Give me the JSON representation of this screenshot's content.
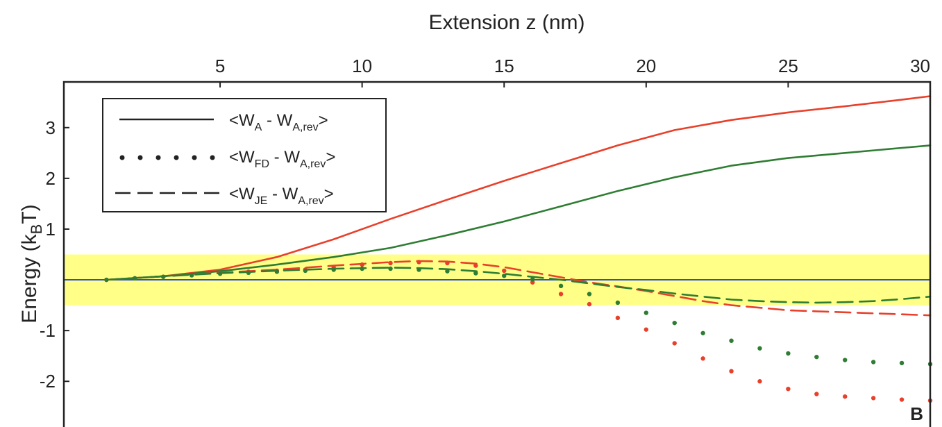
{
  "chart_data": {
    "type": "line",
    "panel_label": "B",
    "xlabel": "Extension z (nm)",
    "ylabel": {
      "main": "Energy (k",
      "sub": "B",
      "tail": "T)"
    },
    "x_ticks": [
      5,
      10,
      15,
      20,
      25,
      30
    ],
    "y_ticks": [
      3,
      2,
      1,
      -1,
      -2
    ],
    "xlim": [
      -0.5,
      30
    ],
    "ylim": [
      -2.9,
      3.9
    ],
    "band": {
      "y_range": [
        -0.5,
        0.5
      ],
      "color": "#ffff88"
    },
    "zero_line_color": "#2f54c7",
    "legend": {
      "placement": "top-left",
      "items": [
        {
          "style": "solid",
          "parts": [
            "<W",
            "A",
            " - W",
            "A,rev",
            ">"
          ]
        },
        {
          "style": "dotted",
          "parts": [
            "<W",
            "FD",
            " - W",
            "A,rev",
            ">"
          ]
        },
        {
          "style": "dashed",
          "parts": [
            "<W",
            "JE",
            " - W",
            "A,rev",
            ">"
          ]
        }
      ]
    },
    "series": [
      {
        "color": "#e8402a",
        "style": "solid",
        "x": [
          1,
          3,
          5,
          7,
          9,
          11,
          13,
          15,
          17,
          19,
          20,
          21,
          23,
          25,
          27,
          29,
          30
        ],
        "y": [
          0,
          0.07,
          0.2,
          0.45,
          0.8,
          1.2,
          1.58,
          1.95,
          2.3,
          2.65,
          2.8,
          2.95,
          3.15,
          3.3,
          3.42,
          3.55,
          3.62
        ]
      },
      {
        "color": "#2e7d32",
        "style": "solid",
        "x": [
          1,
          3,
          5,
          7,
          9,
          11,
          13,
          15,
          17,
          19,
          21,
          23,
          25,
          27,
          29,
          30
        ],
        "y": [
          0,
          0.07,
          0.17,
          0.3,
          0.45,
          0.63,
          0.88,
          1.15,
          1.45,
          1.75,
          2.02,
          2.25,
          2.4,
          2.5,
          2.6,
          2.65
        ]
      },
      {
        "color": "#e8402a",
        "style": "dashed",
        "x": [
          1,
          3,
          5,
          7,
          9,
          11,
          12,
          13,
          14,
          15,
          16,
          17,
          18,
          19,
          20,
          21,
          22,
          23,
          24,
          25,
          26,
          27,
          28,
          29,
          30
        ],
        "y": [
          0,
          0.07,
          0.14,
          0.2,
          0.28,
          0.35,
          0.37,
          0.36,
          0.32,
          0.25,
          0.15,
          0.05,
          -0.05,
          -0.13,
          -0.22,
          -0.32,
          -0.42,
          -0.5,
          -0.55,
          -0.6,
          -0.62,
          -0.64,
          -0.66,
          -0.68,
          -0.7
        ]
      },
      {
        "color": "#2e7d32",
        "style": "dashed",
        "x": [
          1,
          3,
          5,
          7,
          9,
          11,
          12,
          13,
          14,
          15,
          16,
          17,
          18,
          19,
          20,
          21,
          22,
          23,
          24,
          25,
          26,
          27,
          28,
          29,
          30
        ],
        "y": [
          0,
          0.07,
          0.13,
          0.18,
          0.22,
          0.24,
          0.23,
          0.21,
          0.17,
          0.12,
          0.06,
          0,
          -0.07,
          -0.14,
          -0.2,
          -0.27,
          -0.33,
          -0.39,
          -0.42,
          -0.44,
          -0.45,
          -0.44,
          -0.42,
          -0.38,
          -0.33
        ]
      },
      {
        "color": "#e8402a",
        "style": "dotted",
        "x": [
          1,
          2,
          3,
          4,
          5,
          6,
          7,
          8,
          9,
          10,
          11,
          12,
          13,
          14,
          15,
          16,
          17,
          18,
          19,
          20,
          21,
          22,
          23,
          24,
          25,
          26,
          27,
          28,
          29,
          30
        ],
        "y": [
          0,
          0.03,
          0.06,
          0.09,
          0.13,
          0.16,
          0.18,
          0.2,
          0.24,
          0.3,
          0.33,
          0.35,
          0.33,
          0.28,
          0.18,
          -0.05,
          -0.28,
          -0.48,
          -0.75,
          -0.98,
          -1.25,
          -1.55,
          -1.8,
          -2.0,
          -2.15,
          -2.25,
          -2.3,
          -2.33,
          -2.36,
          -2.38
        ]
      },
      {
        "color": "#2e7d32",
        "style": "dotted",
        "x": [
          1,
          2,
          3,
          4,
          5,
          6,
          7,
          8,
          9,
          10,
          11,
          12,
          13,
          14,
          15,
          16,
          17,
          18,
          19,
          20,
          21,
          22,
          23,
          24,
          25,
          26,
          27,
          28,
          29,
          30
        ],
        "y": [
          0,
          0.03,
          0.06,
          0.09,
          0.12,
          0.14,
          0.16,
          0.18,
          0.2,
          0.22,
          0.22,
          0.2,
          0.17,
          0.13,
          0.08,
          0.01,
          -0.12,
          -0.28,
          -0.45,
          -0.65,
          -0.85,
          -1.05,
          -1.2,
          -1.35,
          -1.45,
          -1.52,
          -1.58,
          -1.62,
          -1.64,
          -1.66
        ]
      }
    ]
  }
}
